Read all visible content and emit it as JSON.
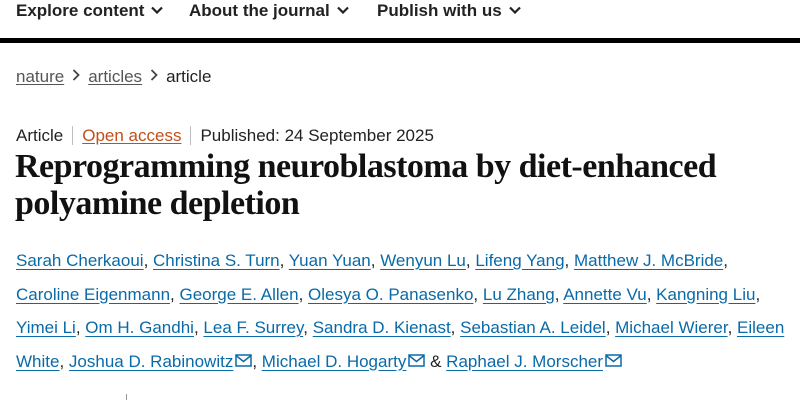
{
  "nav": {
    "items": [
      {
        "label": "Explore content",
        "icon": "chevron-down-icon"
      },
      {
        "label": "About the journal",
        "icon": "chevron-down-icon"
      },
      {
        "label": "Publish with us",
        "icon": "chevron-down-icon"
      }
    ]
  },
  "breadcrumb": {
    "items": [
      {
        "label": "nature"
      },
      {
        "label": "articles"
      },
      {
        "label": "article"
      }
    ],
    "separator_icon": "chevron-right-icon"
  },
  "article": {
    "type": "Article",
    "access": "Open access",
    "published": "Published: 24 September 2025",
    "title_line1": "Reprogramming neuroblastoma by diet-enhanced",
    "title_line2": "polyamine depletion",
    "authors": [
      "Sarah Cherkaoui",
      "Christina S. Turn",
      "Yuan Yuan",
      "Wenyun Lu",
      "Lifeng Yang",
      "Matthew J. McBride",
      "Caroline Eigenmann",
      "George E. Allen",
      "Olesya O. Panasenko",
      "Lu Zhang",
      "Annette Vu",
      "Kangning Liu",
      "Yimei Li",
      "Om H. Gandhi",
      "Lea F. Surrey",
      "Sandra D. Kienast",
      "Sebastian A. Leidel",
      "Michael Wierer",
      "Eileen White",
      "Joshua D. Rabinowitz",
      "Michael D. Hogarty",
      "Raphael J. Morscher"
    ],
    "and_text": "&",
    "contact_icon": "mail-icon"
  },
  "colors": {
    "author_link": "#0a6aa8",
    "open_access": "#c0501a",
    "nav_rule": "#000000"
  }
}
